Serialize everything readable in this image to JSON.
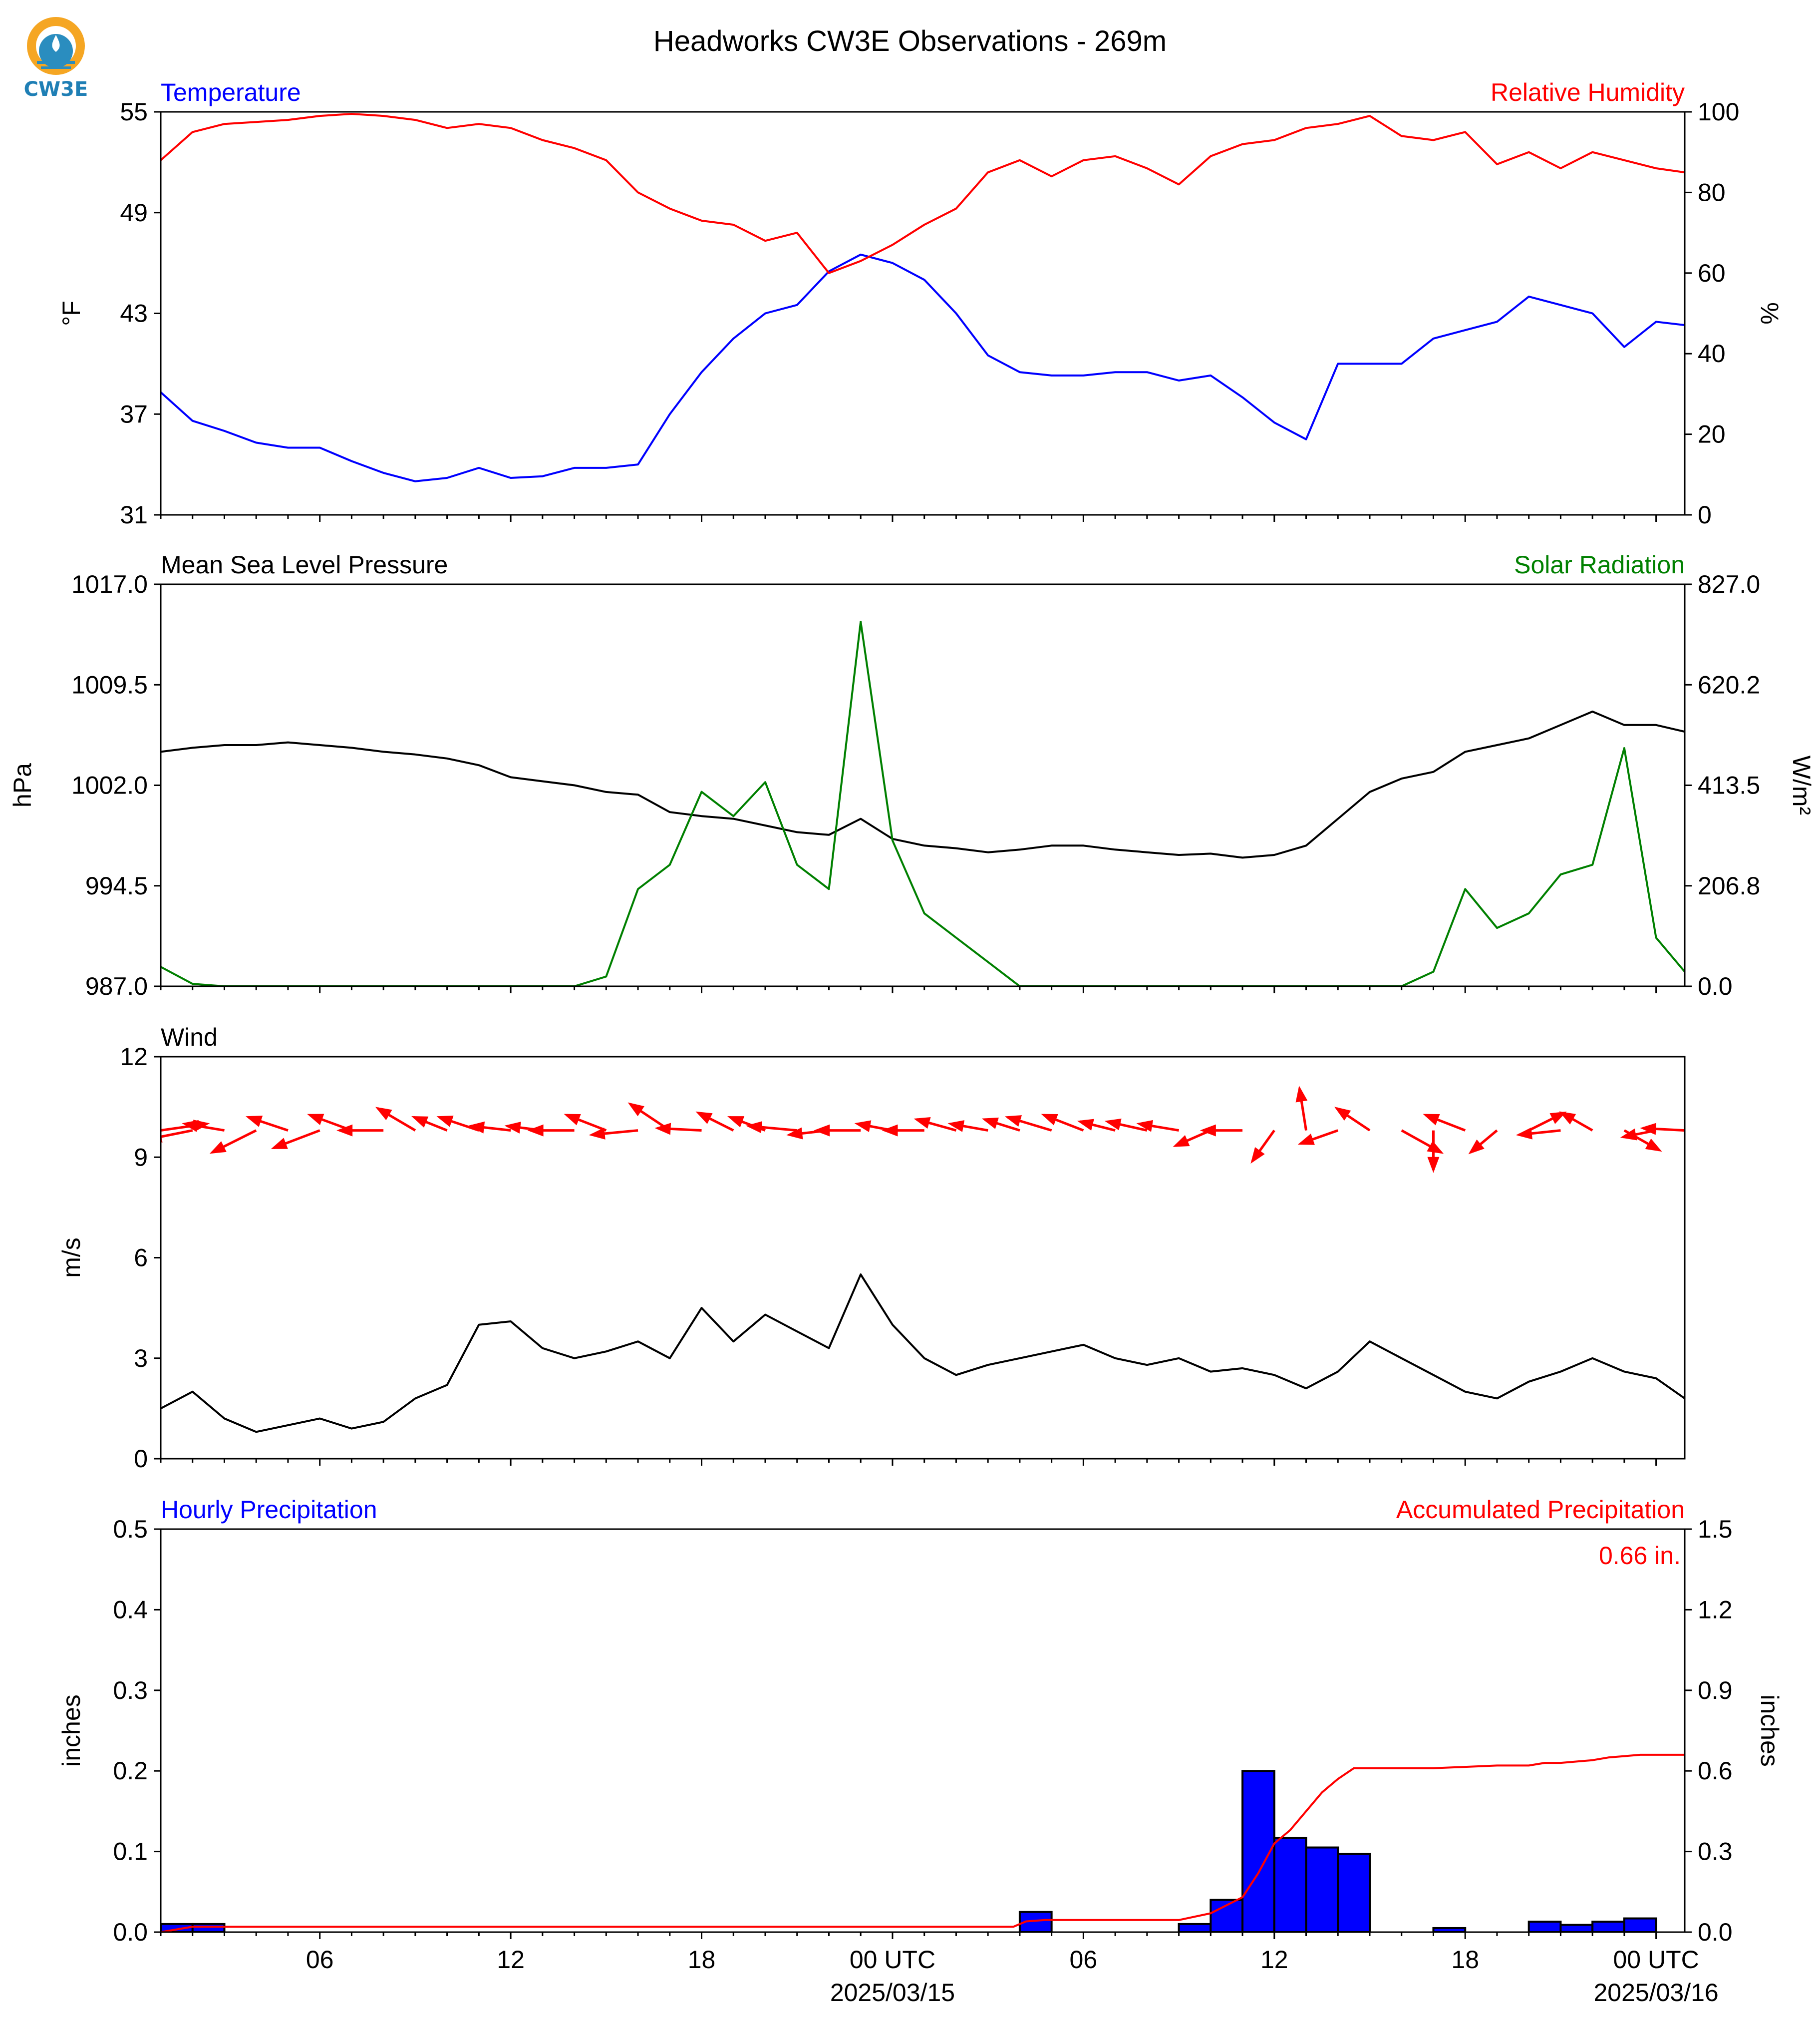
{
  "title": "Headworks CW3E Observations - 269m",
  "logo": {
    "text": "CW3E",
    "colors": {
      "sun": "#F5A623",
      "water": "#2A8DBF",
      "text": "#1F7FB5"
    }
  },
  "x_axis": {
    "ticks": [
      {
        "hour": 6,
        "label": "06"
      },
      {
        "hour": 12,
        "label": "12"
      },
      {
        "hour": 18,
        "label": "18"
      },
      {
        "hour": 24,
        "label": "00 UTC",
        "sublabel": "2025/03/15"
      },
      {
        "hour": 30,
        "label": "06"
      },
      {
        "hour": 36,
        "label": "12"
      },
      {
        "hour": 42,
        "label": "18"
      },
      {
        "hour": 48,
        "label": "00 UTC",
        "sublabel": "2025/03/16"
      }
    ],
    "range_hours": [
      1,
      48.9
    ]
  },
  "chart_data": [
    {
      "type": "line",
      "left_title": "Temperature",
      "left_title_color": "#0000FF",
      "right_title": "Relative Humidity",
      "right_title_color": "#FF0000",
      "ylabel": "°F",
      "y2label": "%",
      "ylim": [
        31,
        55
      ],
      "yticks": [
        "31",
        "37",
        "43",
        "49",
        "55"
      ],
      "y2lim": [
        0,
        100
      ],
      "y2ticks": [
        "0",
        "20",
        "40",
        "60",
        "80",
        "100"
      ],
      "x_hours": [
        1,
        2,
        3,
        4,
        5,
        6,
        7,
        8,
        9,
        10,
        11,
        12,
        13,
        14,
        15,
        16,
        17,
        18,
        19,
        20,
        21,
        22,
        23,
        24,
        25,
        26,
        27,
        28,
        29,
        30,
        31,
        32,
        33,
        34,
        35,
        36,
        37,
        38,
        39,
        40,
        41,
        42,
        43,
        44,
        45,
        46,
        47,
        48,
        48.9
      ],
      "series": [
        {
          "axis": "left",
          "color": "#0000FF",
          "values": [
            38.3,
            36.6,
            36.0,
            35.3,
            35.0,
            35.0,
            34.2,
            33.5,
            33.0,
            33.2,
            33.8,
            33.2,
            33.3,
            33.8,
            33.8,
            34.0,
            37.0,
            39.5,
            41.5,
            43.0,
            43.5,
            45.5,
            46.5,
            46.0,
            45.0,
            43.0,
            40.5,
            39.5,
            39.3,
            39.3,
            39.5,
            39.5,
            39.0,
            39.3,
            38.0,
            36.5,
            35.5,
            40.0,
            40.0,
            40.0,
            41.5,
            42.0,
            42.5,
            44.0,
            43.5,
            43.0,
            41.0,
            42.5,
            42.3
          ]
        },
        {
          "axis": "right",
          "color": "#FF0000",
          "values": [
            88,
            95,
            97,
            97.5,
            98,
            99,
            99.5,
            99,
            98,
            96,
            97,
            96,
            93,
            91,
            88,
            80,
            76,
            73,
            72,
            68,
            70,
            60,
            63,
            67,
            72,
            76,
            85,
            88,
            84,
            88,
            89,
            86,
            82,
            89,
            92,
            93,
            96,
            97,
            99,
            94,
            93,
            95,
            87,
            90,
            86,
            90,
            88,
            86,
            85
          ]
        }
      ]
    },
    {
      "type": "line",
      "left_title": "Mean Sea Level Pressure",
      "left_title_color": "#000000",
      "right_title": "Solar Radiation",
      "right_title_color": "#008000",
      "ylabel": "hPa",
      "y2label": "W/m²",
      "ylim": [
        987.0,
        1017.0
      ],
      "yticks": [
        "987.0",
        "994.5",
        "1002.0",
        "1009.5",
        "1017.0"
      ],
      "y2lim": [
        0.0,
        827.0
      ],
      "y2ticks": [
        "0.0",
        "206.8",
        "413.5",
        "620.2",
        "827.0"
      ],
      "x_hours": [
        1,
        2,
        3,
        4,
        5,
        6,
        7,
        8,
        9,
        10,
        11,
        12,
        13,
        14,
        15,
        16,
        17,
        18,
        19,
        20,
        21,
        22,
        23,
        24,
        25,
        26,
        27,
        28,
        29,
        30,
        31,
        32,
        33,
        34,
        35,
        36,
        37,
        38,
        39,
        40,
        41,
        42,
        43,
        44,
        45,
        46,
        47,
        48,
        48.9
      ],
      "series": [
        {
          "axis": "left",
          "color": "#000000",
          "values": [
            1004.5,
            1004.8,
            1005.0,
            1005.0,
            1005.2,
            1005.0,
            1004.8,
            1004.5,
            1004.3,
            1004.0,
            1003.5,
            1002.6,
            1002.3,
            1002.0,
            1001.5,
            1001.3,
            1000.0,
            999.7,
            999.5,
            999.0,
            998.5,
            998.3,
            999.5,
            998.0,
            997.5,
            997.3,
            997.0,
            997.2,
            997.5,
            997.5,
            997.2,
            997.0,
            996.8,
            996.9,
            996.6,
            996.8,
            997.5,
            999.5,
            1001.5,
            1002.5,
            1003.0,
            1004.5,
            1005.0,
            1005.5,
            1006.5,
            1007.5,
            1006.5,
            1006.5,
            1006.0
          ]
        },
        {
          "axis": "right",
          "color": "#008000",
          "values": [
            40,
            5,
            0,
            0,
            0,
            0,
            0,
            0,
            0,
            0,
            0,
            0,
            0,
            0,
            20,
            200,
            250,
            400,
            350,
            420,
            250,
            200,
            750,
            300,
            150,
            100,
            50,
            0,
            0,
            0,
            0,
            0,
            0,
            0,
            0,
            0,
            0,
            0,
            0,
            0,
            30,
            200,
            120,
            150,
            230,
            250,
            490,
            100,
            30
          ]
        }
      ]
    },
    {
      "type": "line",
      "left_title": "Wind",
      "left_title_color": "#000000",
      "ylabel": "m/s",
      "ylim": [
        0,
        12
      ],
      "yticks": [
        "0",
        "3",
        "6",
        "9",
        "12"
      ],
      "x_hours": [
        1,
        2,
        3,
        4,
        5,
        6,
        7,
        8,
        9,
        10,
        11,
        12,
        13,
        14,
        15,
        16,
        17,
        18,
        19,
        20,
        21,
        22,
        23,
        24,
        25,
        26,
        27,
        28,
        29,
        30,
        31,
        32,
        33,
        34,
        35,
        36,
        37,
        38,
        39,
        40,
        41,
        42,
        43,
        44,
        45,
        46,
        47,
        48,
        48.9
      ],
      "series": [
        {
          "axis": "left",
          "color": "#000000",
          "values": [
            1.5,
            2.0,
            1.2,
            0.8,
            1.0,
            1.2,
            0.9,
            1.1,
            1.8,
            2.2,
            4.0,
            4.1,
            3.3,
            3.0,
            3.2,
            3.5,
            3.0,
            4.5,
            3.5,
            4.3,
            3.8,
            3.3,
            5.5,
            4.0,
            3.0,
            2.5,
            2.8,
            3.0,
            3.2,
            3.4,
            3.0,
            2.8,
            3.0,
            2.6,
            2.7,
            2.5,
            2.1,
            2.6,
            3.5,
            3.0,
            2.5,
            2.0,
            1.8,
            2.3,
            2.6,
            3.0,
            2.6,
            2.4,
            1.8
          ]
        }
      ],
      "vectors": {
        "color": "#FF0000",
        "hours": [
          1,
          2,
          3,
          4,
          5,
          6,
          7,
          8,
          9,
          10,
          11,
          12,
          13,
          14,
          15,
          16,
          17,
          18,
          19,
          20,
          21,
          22,
          23,
          24,
          25,
          26,
          27,
          28,
          29,
          30,
          31,
          32,
          33,
          34,
          35,
          36,
          37,
          38,
          39,
          40,
          41,
          42,
          43,
          44,
          45,
          46,
          47,
          48,
          48.9
        ],
        "u": [
          2.1,
          -2.0,
          -1.8,
          -2.0,
          -1.8,
          -2.1,
          -1.9,
          -2.0,
          -1.7,
          -1.5,
          -1.8,
          -1.8,
          -1.6,
          -2.0,
          -1.8,
          -2.1,
          -1.8,
          -2.0,
          -1.6,
          -1.6,
          -2.2,
          -1.8,
          -2.0,
          -1.6,
          -1.8,
          -1.8,
          -1.7,
          -1.6,
          -2.0,
          -1.8,
          -1.6,
          -1.8,
          -1.8,
          -1.6,
          -1.8,
          -1.0,
          -0.3,
          -1.7,
          -1.5,
          1.8,
          0.0,
          -1.8,
          -1.2,
          1.6,
          -1.9,
          -1.4,
          1.6,
          -1.5,
          -1.9
        ],
        "v": [
          0.3,
          -0.4,
          0.3,
          -1.0,
          0.6,
          -0.8,
          0.7,
          0.0,
          1.0,
          0.6,
          0.6,
          0.2,
          0.2,
          0.0,
          0.7,
          -0.2,
          1.2,
          0.1,
          0.8,
          0.6,
          0.2,
          -0.2,
          0.0,
          0.3,
          0.0,
          0.5,
          0.3,
          0.5,
          0.6,
          0.7,
          0.4,
          0.4,
          0.3,
          -0.7,
          0.0,
          -1.4,
          1.9,
          -0.6,
          1.0,
          -1.0,
          -1.8,
          0.7,
          -1.0,
          0.8,
          -0.2,
          0.8,
          -0.9,
          -0.3,
          0.1
        ]
      }
    },
    {
      "type": "bar",
      "left_title": "Hourly Precipitation",
      "left_title_color": "#0000FF",
      "right_title": "Accumulated Precipitation",
      "right_title_color": "#FF0000",
      "ylabel": "inches",
      "y2label": "inches",
      "ylim": [
        0,
        0.5
      ],
      "yticks": [
        "0.0",
        "0.1",
        "0.2",
        "0.3",
        "0.4",
        "0.5"
      ],
      "y2lim": [
        0,
        1.5
      ],
      "y2ticks": [
        "0.0",
        "0.3",
        "0.6",
        "0.9",
        "1.2",
        "1.5"
      ],
      "bar_color": "#0000FF",
      "bars": [
        {
          "hour": 1.5,
          "value": 0.01
        },
        {
          "hour": 2.5,
          "value": 0.01
        },
        {
          "hour": 28.5,
          "value": 0.025
        },
        {
          "hour": 33.5,
          "value": 0.01
        },
        {
          "hour": 34.5,
          "value": 0.04
        },
        {
          "hour": 35.5,
          "value": 0.2
        },
        {
          "hour": 36.5,
          "value": 0.117
        },
        {
          "hour": 37.5,
          "value": 0.105
        },
        {
          "hour": 38.5,
          "value": 0.097
        },
        {
          "hour": 41.5,
          "value": 0.005
        },
        {
          "hour": 44.5,
          "value": 0.013
        },
        {
          "hour": 45.5,
          "value": 0.009
        },
        {
          "hour": 46.5,
          "value": 0.013
        },
        {
          "hour": 47.5,
          "value": 0.017
        }
      ],
      "accumulated": {
        "color": "#FF0000",
        "x_hours": [
          1,
          2,
          3,
          4,
          27.8,
          28.2,
          28.8,
          29,
          33,
          34,
          35,
          35.5,
          36,
          36.5,
          37,
          37.5,
          38,
          38.5,
          39,
          41,
          42,
          43,
          44,
          44.5,
          45,
          46,
          46.5,
          47,
          47.5,
          48,
          48.9
        ],
        "values": [
          0.0,
          0.02,
          0.02,
          0.02,
          0.02,
          0.04,
          0.045,
          0.045,
          0.045,
          0.07,
          0.13,
          0.22,
          0.33,
          0.38,
          0.45,
          0.52,
          0.57,
          0.61,
          0.61,
          0.61,
          0.615,
          0.62,
          0.62,
          0.63,
          0.63,
          0.64,
          0.65,
          0.655,
          0.66,
          0.66,
          0.66
        ]
      },
      "annotation": "0.66 in."
    }
  ]
}
